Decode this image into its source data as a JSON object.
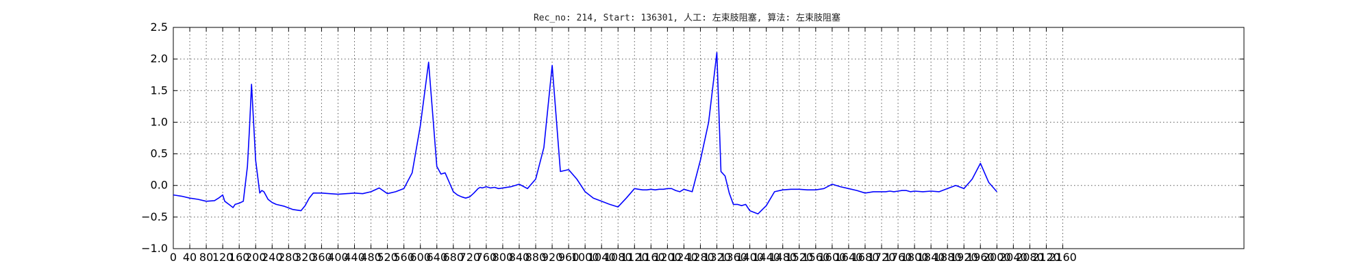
{
  "chart_data": {
    "type": "line",
    "title": "Rec_no: 214, Start: 136301, 人工: 左束肢阻塞, 算法: 左束肢阻塞",
    "xlabel": "",
    "ylabel": "",
    "xlim": [
      0,
      2160
    ],
    "ylim": [
      -1.0,
      2.5
    ],
    "grid": true,
    "yticks": [
      -1.0,
      -0.5,
      0.0,
      0.5,
      1.0,
      1.5,
      2.0,
      2.5
    ],
    "ytick_labels": [
      "−1.0",
      "−0.5",
      "0.0",
      "0.5",
      "1.0",
      "1.5",
      "2.0",
      "2.5"
    ],
    "xticks": [
      0,
      40,
      80,
      120,
      160,
      200,
      240,
      280,
      320,
      360,
      400,
      440,
      480,
      520,
      560,
      600,
      640,
      680,
      720,
      760,
      800,
      840,
      880,
      920,
      960,
      1000,
      1040,
      1080,
      1120,
      1160,
      1200,
      1240,
      1280,
      1320,
      1360,
      1400,
      1440,
      1480,
      1520,
      1560,
      1600,
      1640,
      1680,
      1720,
      1760,
      1800,
      1840,
      1880,
      1920,
      1960,
      2000,
      2040,
      2080,
      2120,
      2160
    ],
    "xtick_labels": [
      "0",
      "40",
      "80",
      "120",
      "160",
      "200",
      "240",
      "280",
      "320",
      "360",
      "400",
      "440",
      "480",
      "520",
      "560",
      "600",
      "640",
      "680",
      "720",
      "760",
      "800",
      "840",
      "880",
      "920",
      "960",
      "1000",
      "1040",
      "1080",
      "1120",
      "1160",
      "1200",
      "1240",
      "1280",
      "1320",
      "1360",
      "1400",
      "1440",
      "1480",
      "1520",
      "1560",
      "1600",
      "1640",
      "1680",
      "1720",
      "1760",
      "1800",
      "1840",
      "1880",
      "1920",
      "1960",
      "2000",
      "2040",
      "2080",
      "2120",
      "2160"
    ],
    "series": [
      {
        "color": "#0000ff",
        "x": [
          0,
          20,
          40,
          60,
          80,
          100,
          110,
          120,
          125,
          135,
          145,
          150,
          160,
          170,
          180,
          185,
          190,
          200,
          210,
          215,
          220,
          230,
          240,
          250,
          270,
          290,
          310,
          320,
          330,
          340,
          360,
          380,
          400,
          420,
          440,
          460,
          480,
          500,
          520,
          540,
          560,
          580,
          600,
          620,
          640,
          650,
          660,
          670,
          680,
          690,
          700,
          710,
          720,
          730,
          740,
          745,
          750,
          755,
          760,
          770,
          780,
          790,
          800,
          820,
          840,
          860,
          880,
          900,
          920,
          940,
          960,
          980,
          1000,
          1020,
          1040,
          1060,
          1080,
          1100,
          1120,
          1130,
          1140,
          1150,
          1160,
          1170,
          1180,
          1190,
          1200,
          1210,
          1220,
          1230,
          1240,
          1260,
          1280,
          1300,
          1320,
          1330,
          1340,
          1350,
          1360,
          1370,
          1380,
          1390,
          1400,
          1420,
          1440,
          1460,
          1480,
          1500,
          1520,
          1540,
          1560,
          1580,
          1600,
          1620,
          1640,
          1660,
          1680,
          1700,
          1720,
          1730,
          1740,
          1750,
          1760,
          1770,
          1780,
          1790,
          1800,
          1820,
          1840,
          1860,
          1880,
          1900,
          1920,
          1940,
          1960,
          1980,
          2000
        ],
        "y": [
          -0.15,
          -0.17,
          -0.2,
          -0.22,
          -0.25,
          -0.24,
          -0.2,
          -0.15,
          -0.25,
          -0.3,
          -0.35,
          -0.3,
          -0.28,
          -0.25,
          0.3,
          0.9,
          1.6,
          0.4,
          -0.12,
          -0.08,
          -0.1,
          -0.22,
          -0.27,
          -0.3,
          -0.33,
          -0.38,
          -0.4,
          -0.32,
          -0.2,
          -0.12,
          -0.12,
          -0.13,
          -0.14,
          -0.13,
          -0.12,
          -0.13,
          -0.1,
          -0.04,
          -0.13,
          -0.1,
          -0.05,
          0.2,
          0.95,
          1.95,
          0.3,
          0.18,
          0.2,
          0.05,
          -0.1,
          -0.15,
          -0.18,
          -0.2,
          -0.18,
          -0.12,
          -0.05,
          -0.03,
          -0.04,
          -0.03,
          -0.02,
          -0.04,
          -0.03,
          -0.05,
          -0.04,
          -0.02,
          0.02,
          -0.05,
          0.1,
          0.6,
          1.9,
          0.22,
          0.25,
          0.1,
          -0.1,
          -0.2,
          -0.25,
          -0.3,
          -0.34,
          -0.2,
          -0.05,
          -0.06,
          -0.07,
          -0.07,
          -0.06,
          -0.07,
          -0.06,
          -0.06,
          -0.05,
          -0.05,
          -0.08,
          -0.1,
          -0.06,
          -0.1,
          0.4,
          1.0,
          2.1,
          0.22,
          0.15,
          -0.12,
          -0.3,
          -0.3,
          -0.32,
          -0.3,
          -0.4,
          -0.45,
          -0.32,
          -0.1,
          -0.07,
          -0.06,
          -0.06,
          -0.07,
          -0.07,
          -0.05,
          0.02,
          -0.02,
          -0.05,
          -0.08,
          -0.12,
          -0.1,
          -0.1,
          -0.1,
          -0.09,
          -0.1,
          -0.09,
          -0.08,
          -0.08,
          -0.1,
          -0.09,
          -0.1,
          -0.09,
          -0.1,
          -0.05,
          0.0,
          -0.05,
          0.1,
          0.35,
          0.05,
          -0.1
        ]
      }
    ]
  }
}
